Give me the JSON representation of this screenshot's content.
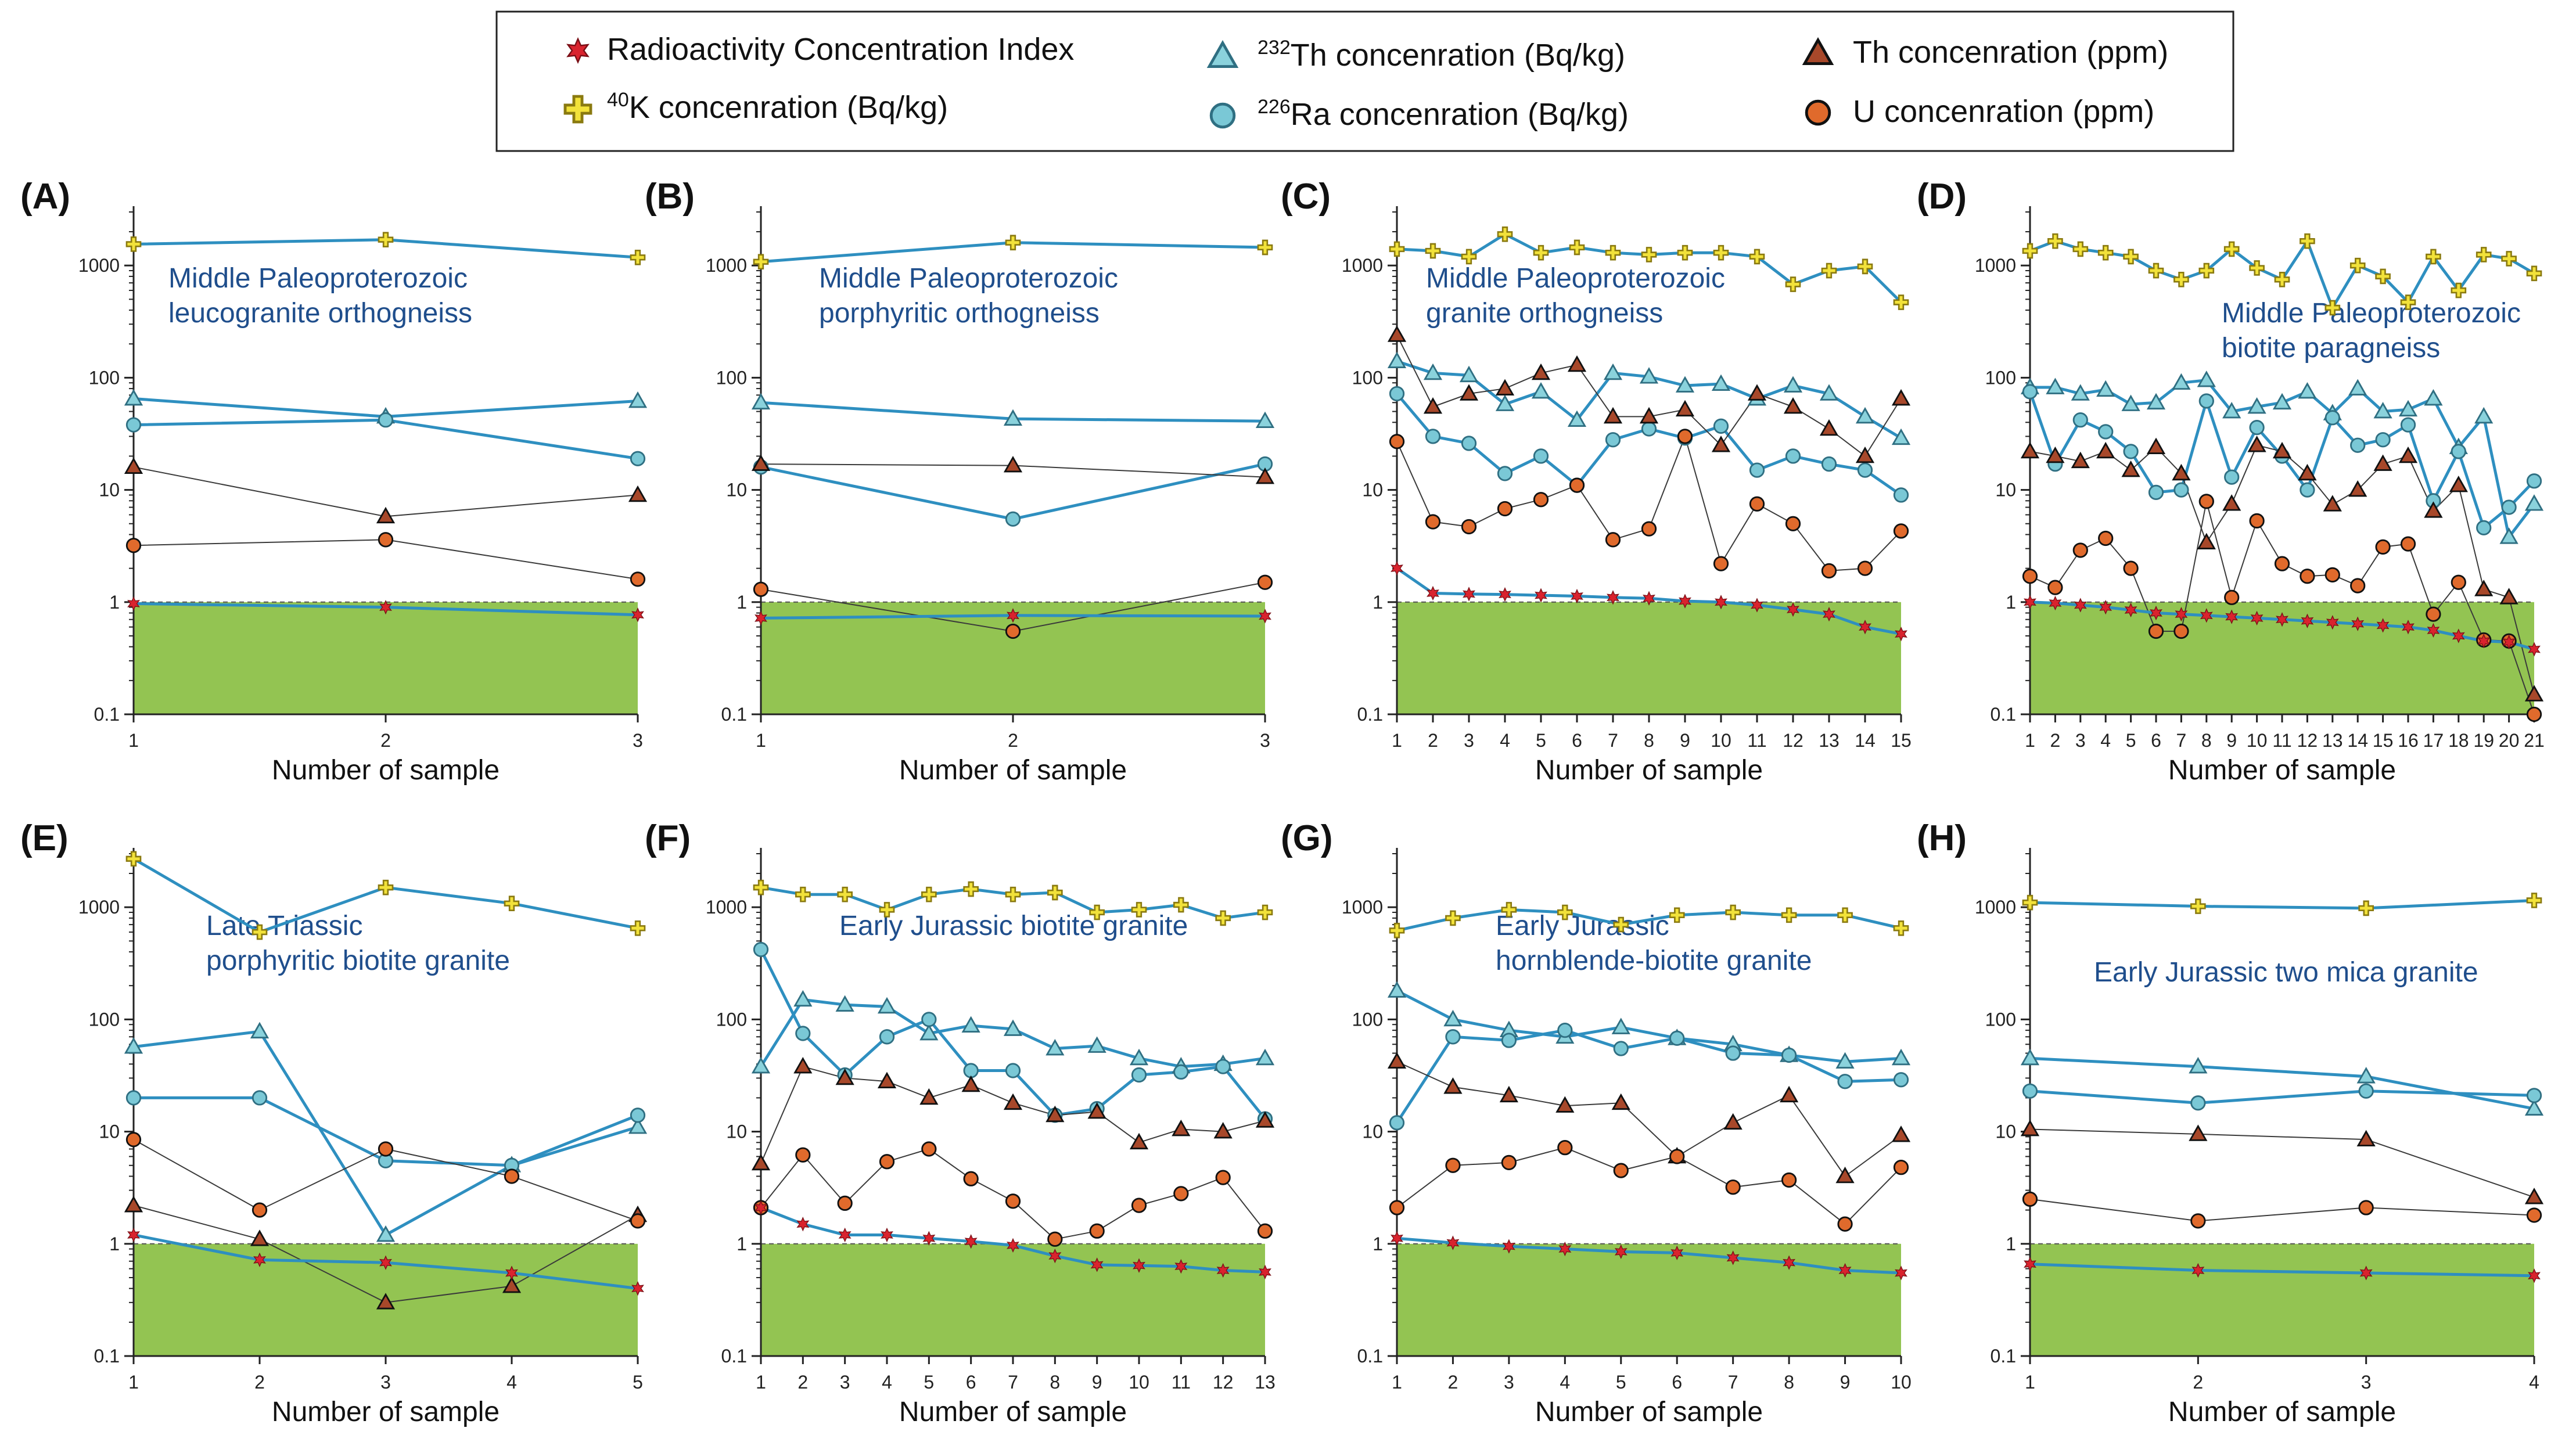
{
  "legend": {
    "items": [
      {
        "key": "rci",
        "label": "Radioactivity Concentration Index"
      },
      {
        "key": "k40",
        "label": "K concenration (Bq/kg)",
        "sup": "40"
      },
      {
        "key": "th232",
        "label": "Th concenration (Bq/kg)",
        "sup": "232"
      },
      {
        "key": "ra226",
        "label": "Ra concenration (Bq/kg)",
        "sup": "226"
      },
      {
        "key": "th_ppm",
        "label": "Th concenration (ppm)"
      },
      {
        "key": "u_ppm",
        "label": "U concenration (ppm)"
      }
    ]
  },
  "colors": {
    "line_blue": "#2e8fc0",
    "line_thin": "#3a3a3a",
    "safe_zone": "#93c452",
    "k40_fill": "#f2e23a",
    "k40_edge": "#8a7a10",
    "rci_fill": "#d9232e",
    "th232_fill": "#8ad2dc",
    "ra226_fill": "#7ac8d6",
    "th_ppm_fill": "#a8482a",
    "u_ppm_fill": "#e06a2c",
    "panel_title": "#1f4e8c",
    "axis": "#222222"
  },
  "chart_data": [
    {
      "panel": "(A)",
      "type": "line",
      "title": "Middle Paleoproterozoic\nleucogranite orthogneiss",
      "xlabel": "Number of sample",
      "yscale": "log",
      "ylim": [
        0.1,
        3000
      ],
      "yticks": [
        "0.1",
        "1",
        "10",
        "100",
        "1000"
      ],
      "x": [
        1,
        2,
        3
      ],
      "series": [
        {
          "name": "K concenration (Bq/kg)",
          "key": "k40",
          "values": [
            1550,
            1700,
            1180
          ]
        },
        {
          "name": "Th concenration (Bq/kg)",
          "key": "th232",
          "values": [
            65,
            45,
            62
          ]
        },
        {
          "name": "Ra concenration (Bq/kg)",
          "key": "ra226",
          "values": [
            38,
            42,
            19
          ]
        },
        {
          "name": "Th concenration (ppm)",
          "key": "th_ppm",
          "values": [
            16,
            5.8,
            9
          ]
        },
        {
          "name": "U concenration (ppm)",
          "key": "u_ppm",
          "values": [
            3.2,
            3.6,
            1.6
          ]
        },
        {
          "name": "Radioactivity Concentration Index",
          "key": "rci",
          "values": [
            0.97,
            0.9,
            0.77
          ]
        }
      ]
    },
    {
      "panel": "(B)",
      "type": "line",
      "title": "Middle Paleoproterozoic\nporphyritic orthogneiss",
      "xlabel": "Number of sample",
      "yscale": "log",
      "ylim": [
        0.1,
        3000
      ],
      "yticks": [
        "0.1",
        "1",
        "10",
        "100",
        "1000"
      ],
      "x": [
        1,
        2,
        3
      ],
      "series": [
        {
          "name": "K concenration (Bq/kg)",
          "key": "k40",
          "values": [
            1080,
            1600,
            1450
          ]
        },
        {
          "name": "Th concenration (Bq/kg)",
          "key": "th232",
          "values": [
            60,
            43,
            41
          ]
        },
        {
          "name": "Ra concenration (Bq/kg)",
          "key": "ra226",
          "values": [
            16,
            5.5,
            17
          ]
        },
        {
          "name": "Th concenration (ppm)",
          "key": "th_ppm",
          "values": [
            17,
            16.5,
            13
          ]
        },
        {
          "name": "U concenration (ppm)",
          "key": "u_ppm",
          "values": [
            1.3,
            0.55,
            1.5
          ]
        },
        {
          "name": "Radioactivity Concentration Index",
          "key": "rci",
          "values": [
            0.72,
            0.76,
            0.75
          ]
        }
      ]
    },
    {
      "panel": "(C)",
      "type": "line",
      "title": "Middle Paleoproterozoic\ngranite orthogneiss",
      "xlabel": "Number of sample",
      "yscale": "log",
      "ylim": [
        0.1,
        3000
      ],
      "yticks": [
        "0.1",
        "1",
        "10",
        "100",
        "1000"
      ],
      "x": [
        1,
        2,
        3,
        4,
        5,
        6,
        7,
        8,
        9,
        10,
        11,
        12,
        13,
        14,
        15
      ],
      "series": [
        {
          "name": "K concenration (Bq/kg)",
          "key": "k40",
          "values": [
            1400,
            1350,
            1200,
            1900,
            1300,
            1450,
            1300,
            1250,
            1300,
            1300,
            1200,
            680,
            900,
            980,
            470
          ]
        },
        {
          "name": "Th concenration (Bq/kg)",
          "key": "th232",
          "values": [
            140,
            110,
            105,
            58,
            75,
            42,
            110,
            102,
            85,
            88,
            65,
            85,
            72,
            45,
            29
          ]
        },
        {
          "name": "Ra concenration (Bq/kg)",
          "key": "ra226",
          "values": [
            72,
            30,
            26,
            14,
            20,
            11,
            28,
            35,
            29,
            37,
            15,
            20,
            17,
            15,
            9
          ]
        },
        {
          "name": "Th concenration (ppm)",
          "key": "th_ppm",
          "values": [
            240,
            55,
            72,
            80,
            110,
            130,
            45,
            45,
            52,
            25,
            72,
            55,
            35,
            20,
            65
          ]
        },
        {
          "name": "U concenration (ppm)",
          "key": "u_ppm",
          "values": [
            27,
            5.2,
            4.7,
            6.8,
            8.2,
            11,
            3.6,
            4.5,
            30,
            2.2,
            7.5,
            5,
            1.9,
            2.0,
            4.3
          ]
        },
        {
          "name": "Radioactivity Concentration Index",
          "key": "rci",
          "values": [
            2.0,
            1.2,
            1.18,
            1.17,
            1.15,
            1.13,
            1.1,
            1.08,
            1.02,
            1.0,
            0.94,
            0.86,
            0.78,
            0.6,
            0.52
          ]
        }
      ]
    },
    {
      "panel": "(D)",
      "type": "line",
      "title": "Middle Paleoproterozoic\nbiotite paragneiss",
      "xlabel": "Number of sample",
      "yscale": "log",
      "ylim": [
        0.1,
        3000
      ],
      "yticks": [
        "0.1",
        "1",
        "10",
        "100",
        "1000"
      ],
      "x": [
        1,
        2,
        3,
        4,
        5,
        6,
        7,
        8,
        9,
        10,
        11,
        12,
        13,
        14,
        15,
        16,
        17,
        18,
        19,
        20,
        21
      ],
      "series": [
        {
          "name": "K concenration (Bq/kg)",
          "key": "k40",
          "values": [
            1350,
            1650,
            1400,
            1300,
            1200,
            900,
            750,
            900,
            1400,
            950,
            750,
            1650,
            420,
            1000,
            800,
            470,
            1200,
            600,
            1250,
            1150,
            850
          ]
        },
        {
          "name": "Th concenration (Bq/kg)",
          "key": "th232",
          "values": [
            82,
            82,
            72,
            78,
            58,
            60,
            90,
            95,
            50,
            55,
            60,
            75,
            48,
            80,
            50,
            52,
            65,
            24,
            45,
            3.8,
            7.5
          ]
        },
        {
          "name": "Ra concenration (Bq/kg)",
          "key": "ra226",
          "values": [
            75,
            17,
            42,
            33,
            22,
            9.5,
            10,
            62,
            13,
            36,
            20,
            10,
            44,
            25,
            28,
            38,
            8,
            22,
            4.6,
            7,
            12
          ]
        },
        {
          "name": "Th concenration (ppm)",
          "key": "th_ppm",
          "values": [
            22,
            20,
            18,
            22,
            15,
            24,
            14,
            3.4,
            7.5,
            25,
            22,
            14,
            7.4,
            10,
            17,
            20,
            6.5,
            11,
            1.3,
            1.1,
            0.15
          ]
        },
        {
          "name": "U concenration (ppm)",
          "key": "u_ppm",
          "values": [
            1.7,
            1.35,
            2.9,
            3.7,
            2.0,
            0.55,
            0.55,
            7.9,
            1.1,
            5.3,
            2.2,
            1.7,
            1.75,
            1.4,
            3.1,
            3.3,
            0.78,
            1.5,
            0.46,
            0.45,
            0.1
          ]
        },
        {
          "name": "Radioactivity Concentration Index",
          "key": "rci",
          "values": [
            1.0,
            0.98,
            0.94,
            0.9,
            0.85,
            0.8,
            0.78,
            0.76,
            0.74,
            0.72,
            0.7,
            0.68,
            0.66,
            0.64,
            0.62,
            0.6,
            0.56,
            0.5,
            0.45,
            0.44,
            0.38
          ]
        }
      ]
    },
    {
      "panel": "(E)",
      "type": "line",
      "title": "Late Triassic\nporphyritic biotite granite",
      "xlabel": "Number of sample",
      "yscale": "log",
      "ylim": [
        0.1,
        3000
      ],
      "yticks": [
        "0.1",
        "1",
        "10",
        "100",
        "1000"
      ],
      "x": [
        1,
        2,
        3,
        4,
        5
      ],
      "series": [
        {
          "name": "K concenration (Bq/kg)",
          "key": "k40",
          "values": [
            2700,
            600,
            1500,
            1080,
            650
          ]
        },
        {
          "name": "Th concenration (Bq/kg)",
          "key": "th232",
          "values": [
            57,
            78,
            1.2,
            5,
            11
          ]
        },
        {
          "name": "Ra concenration (Bq/kg)",
          "key": "ra226",
          "values": [
            20,
            20,
            5.5,
            5.0,
            14
          ]
        },
        {
          "name": "Th concenration (ppm)",
          "key": "th_ppm",
          "values": [
            2.2,
            1.1,
            0.3,
            0.42,
            1.8
          ]
        },
        {
          "name": "U concenration (ppm)",
          "key": "u_ppm",
          "values": [
            8.5,
            2.0,
            7.0,
            4.0,
            1.6
          ]
        },
        {
          "name": "Radioactivity Concentration Index",
          "key": "rci",
          "values": [
            1.2,
            0.72,
            0.68,
            0.55,
            0.4
          ]
        }
      ]
    },
    {
      "panel": "(F)",
      "type": "line",
      "title": "Early Jurassic biotite granite",
      "xlabel": "Number of sample",
      "yscale": "log",
      "ylim": [
        0.1,
        3000
      ],
      "yticks": [
        "0.1",
        "1",
        "10",
        "100",
        "1000"
      ],
      "x": [
        1,
        2,
        3,
        4,
        5,
        6,
        7,
        8,
        9,
        10,
        11,
        12,
        13
      ],
      "series": [
        {
          "name": "K concenration (Bq/kg)",
          "key": "k40",
          "values": [
            1500,
            1300,
            1300,
            950,
            1300,
            1450,
            1300,
            1350,
            900,
            950,
            1050,
            800,
            900
          ]
        },
        {
          "name": "Th concenration (Bq/kg)",
          "key": "th232",
          "values": [
            38,
            150,
            135,
            130,
            75,
            88,
            82,
            55,
            58,
            45,
            38,
            40,
            45
          ]
        },
        {
          "name": "Ra concenration (Bq/kg)",
          "key": "ra226",
          "values": [
            420,
            75,
            32,
            70,
            100,
            35,
            35,
            14,
            16,
            32,
            34,
            38,
            13
          ]
        },
        {
          "name": "Th concenration (ppm)",
          "key": "th_ppm",
          "values": [
            5.2,
            38,
            30,
            28,
            20,
            26,
            18,
            14,
            15,
            8,
            10.5,
            10,
            12.5
          ]
        },
        {
          "name": "U concenration (ppm)",
          "key": "u_ppm",
          "values": [
            2.1,
            6.2,
            2.3,
            5.4,
            7.0,
            3.8,
            2.4,
            1.1,
            1.3,
            2.2,
            2.8,
            3.9,
            1.3
          ]
        },
        {
          "name": "Radioactivity Concentration Index",
          "key": "rci",
          "values": [
            2.1,
            1.5,
            1.2,
            1.2,
            1.12,
            1.05,
            0.97,
            0.78,
            0.65,
            0.64,
            0.63,
            0.58,
            0.56
          ]
        }
      ]
    },
    {
      "panel": "(G)",
      "type": "line",
      "title": "Early Jurassic\nhornblende-biotite granite",
      "xlabel": "Number of sample",
      "yscale": "log",
      "ylim": [
        0.1,
        3000
      ],
      "yticks": [
        "0.1",
        "1",
        "10",
        "100",
        "1000"
      ],
      "x": [
        1,
        2,
        3,
        4,
        5,
        6,
        7,
        8,
        9,
        10
      ],
      "series": [
        {
          "name": "K concenration (Bq/kg)",
          "key": "k40",
          "values": [
            620,
            800,
            950,
            900,
            700,
            850,
            900,
            850,
            850,
            650
          ]
        },
        {
          "name": "Th concenration (Bq/kg)",
          "key": "th232",
          "values": [
            180,
            100,
            80,
            70,
            85,
            68,
            60,
            48,
            42,
            45
          ]
        },
        {
          "name": "Ra concenration (Bq/kg)",
          "key": "ra226",
          "values": [
            12,
            70,
            65,
            80,
            55,
            68,
            50,
            48,
            28,
            29
          ]
        },
        {
          "name": "Th concenration (ppm)",
          "key": "th_ppm",
          "values": [
            42,
            25,
            21,
            17,
            18,
            6,
            12,
            21,
            4,
            9.3
          ]
        },
        {
          "name": "U concenration (ppm)",
          "key": "u_ppm",
          "values": [
            2.1,
            5.0,
            5.3,
            7.2,
            4.5,
            6.0,
            3.2,
            3.7,
            1.5,
            4.8
          ]
        },
        {
          "name": "Radioactivity Concentration Index",
          "key": "rci",
          "values": [
            1.12,
            1.02,
            0.95,
            0.9,
            0.85,
            0.83,
            0.75,
            0.68,
            0.58,
            0.55
          ]
        }
      ]
    },
    {
      "panel": "(H)",
      "type": "line",
      "title": "Early Jurassic two mica granite",
      "xlabel": "Number of sample",
      "yscale": "log",
      "ylim": [
        0.1,
        3000
      ],
      "yticks": [
        "0.1",
        "1",
        "10",
        "100",
        "1000"
      ],
      "x": [
        1,
        2,
        3,
        4
      ],
      "series": [
        {
          "name": "K concenration (Bq/kg)",
          "key": "k40",
          "values": [
            1100,
            1020,
            980,
            1150
          ]
        },
        {
          "name": "Th concenration (Bq/kg)",
          "key": "th232",
          "values": [
            45,
            38,
            31,
            16
          ]
        },
        {
          "name": "Ra concenration (Bq/kg)",
          "key": "ra226",
          "values": [
            23,
            18,
            23,
            21
          ]
        },
        {
          "name": "Th concenration (ppm)",
          "key": "th_ppm",
          "values": [
            10.5,
            9.5,
            8.5,
            2.6
          ]
        },
        {
          "name": "U concenration (ppm)",
          "key": "u_ppm",
          "values": [
            2.5,
            1.6,
            2.1,
            1.8
          ]
        },
        {
          "name": "Radioactivity Concentration Index",
          "key": "rci",
          "values": [
            0.66,
            0.58,
            0.55,
            0.52
          ]
        }
      ]
    }
  ]
}
